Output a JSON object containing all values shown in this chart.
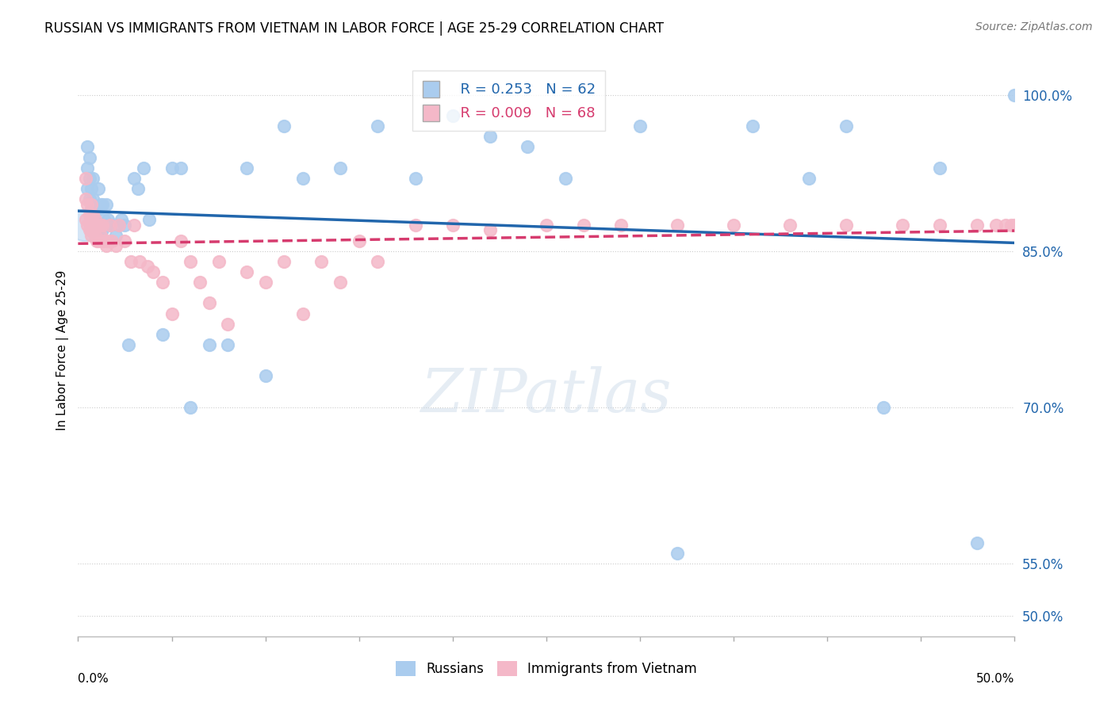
{
  "title": "RUSSIAN VS IMMIGRANTS FROM VIETNAM IN LABOR FORCE | AGE 25-29 CORRELATION CHART",
  "source": "Source: ZipAtlas.com",
  "ylabel": "In Labor Force | Age 25-29",
  "legend_label_blue": "Russians",
  "legend_label_pink": "Immigrants from Vietnam",
  "R_blue": 0.253,
  "N_blue": 62,
  "R_pink": 0.009,
  "N_pink": 68,
  "color_blue": "#aaccee",
  "color_pink": "#f4b8c8",
  "color_trend_blue": "#2166ac",
  "color_trend_pink": "#d63b6e",
  "color_grid": "#cccccc",
  "ytick_values": [
    0.5,
    0.55,
    0.7,
    0.85,
    1.0
  ],
  "ytick_labels": [
    "50.0%",
    "55.0%",
    "70.0%",
    "85.0%",
    "100.0%"
  ],
  "blue_x": [
    0.005,
    0.005,
    0.005,
    0.006,
    0.006,
    0.006,
    0.007,
    0.007,
    0.008,
    0.008,
    0.008,
    0.009,
    0.009,
    0.01,
    0.01,
    0.011,
    0.011,
    0.011,
    0.012,
    0.012,
    0.013,
    0.013,
    0.014,
    0.015,
    0.015,
    0.016,
    0.017,
    0.02,
    0.022,
    0.023,
    0.025,
    0.027,
    0.03,
    0.032,
    0.035,
    0.038,
    0.045,
    0.05,
    0.055,
    0.06,
    0.07,
    0.08,
    0.09,
    0.1,
    0.11,
    0.12,
    0.14,
    0.16,
    0.18,
    0.2,
    0.22,
    0.24,
    0.26,
    0.3,
    0.32,
    0.36,
    0.39,
    0.41,
    0.43,
    0.46,
    0.48,
    0.5
  ],
  "blue_y": [
    0.91,
    0.93,
    0.95,
    0.9,
    0.92,
    0.94,
    0.89,
    0.91,
    0.88,
    0.9,
    0.92,
    0.87,
    0.89,
    0.875,
    0.89,
    0.87,
    0.89,
    0.91,
    0.875,
    0.895,
    0.87,
    0.895,
    0.88,
    0.875,
    0.895,
    0.88,
    0.875,
    0.865,
    0.875,
    0.88,
    0.875,
    0.76,
    0.92,
    0.91,
    0.93,
    0.88,
    0.77,
    0.93,
    0.93,
    0.7,
    0.76,
    0.76,
    0.93,
    0.73,
    0.97,
    0.92,
    0.93,
    0.97,
    0.92,
    0.98,
    0.96,
    0.95,
    0.92,
    0.97,
    0.56,
    0.97,
    0.92,
    0.97,
    0.7,
    0.93,
    0.57,
    1.0
  ],
  "pink_x": [
    0.004,
    0.004,
    0.004,
    0.005,
    0.005,
    0.006,
    0.006,
    0.007,
    0.007,
    0.007,
    0.008,
    0.008,
    0.009,
    0.009,
    0.01,
    0.01,
    0.011,
    0.011,
    0.012,
    0.012,
    0.013,
    0.013,
    0.014,
    0.015,
    0.016,
    0.017,
    0.018,
    0.02,
    0.022,
    0.025,
    0.028,
    0.03,
    0.033,
    0.037,
    0.04,
    0.045,
    0.05,
    0.055,
    0.06,
    0.065,
    0.07,
    0.075,
    0.08,
    0.09,
    0.1,
    0.11,
    0.12,
    0.13,
    0.14,
    0.15,
    0.16,
    0.18,
    0.2,
    0.22,
    0.25,
    0.27,
    0.29,
    0.32,
    0.35,
    0.38,
    0.41,
    0.44,
    0.46,
    0.48,
    0.49,
    0.495,
    0.498,
    0.5
  ],
  "pink_y": [
    0.88,
    0.9,
    0.92,
    0.875,
    0.895,
    0.87,
    0.885,
    0.865,
    0.88,
    0.895,
    0.87,
    0.885,
    0.865,
    0.88,
    0.86,
    0.875,
    0.86,
    0.875,
    0.865,
    0.875,
    0.86,
    0.875,
    0.86,
    0.855,
    0.86,
    0.875,
    0.86,
    0.855,
    0.875,
    0.86,
    0.84,
    0.875,
    0.84,
    0.835,
    0.83,
    0.82,
    0.79,
    0.86,
    0.84,
    0.82,
    0.8,
    0.84,
    0.78,
    0.83,
    0.82,
    0.84,
    0.79,
    0.84,
    0.82,
    0.86,
    0.84,
    0.875,
    0.875,
    0.87,
    0.875,
    0.875,
    0.875,
    0.875,
    0.875,
    0.875,
    0.875,
    0.875,
    0.875,
    0.875,
    0.875,
    0.875,
    0.875,
    0.875
  ],
  "xlim": [
    0.0,
    0.5
  ],
  "ylim": [
    0.48,
    1.03
  ]
}
